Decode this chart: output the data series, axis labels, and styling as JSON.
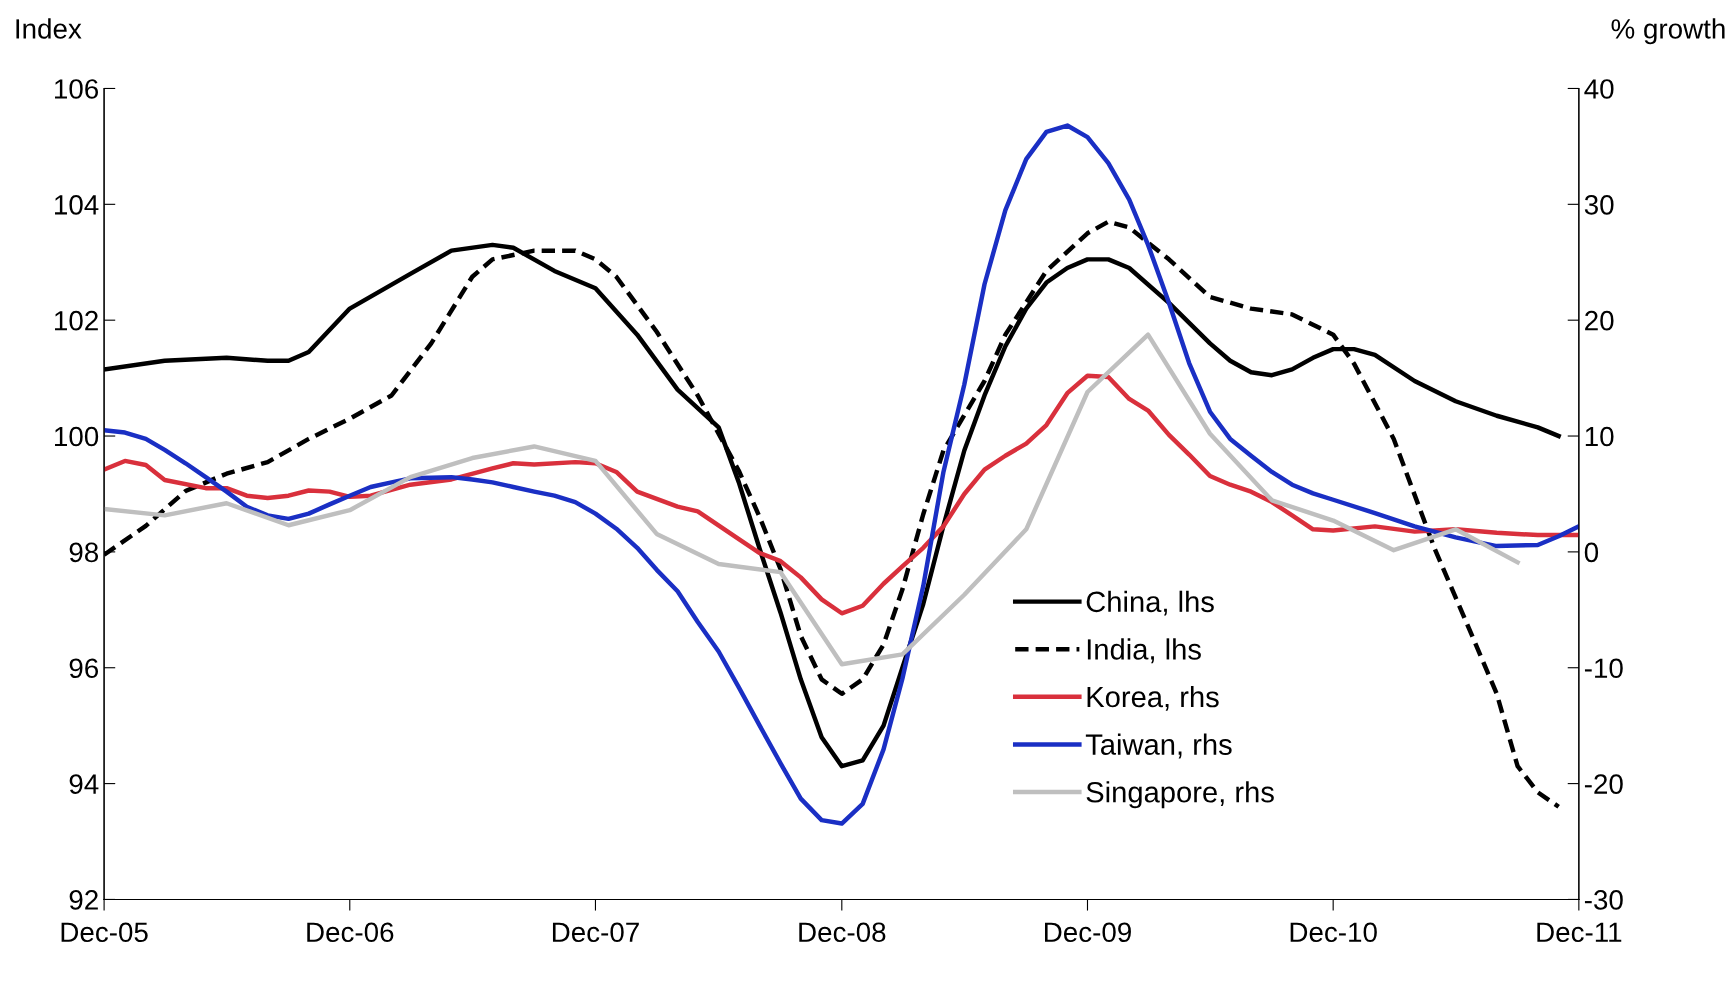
{
  "chart_data": {
    "type": "line",
    "ylabel": "Index",
    "y2label": "% growth",
    "xlim": [
      "2005-12",
      "2011-12"
    ],
    "xticks": [
      {
        "value": "2005-12",
        "label": "Dec-05"
      },
      {
        "value": "2006-12",
        "label": "Dec-06"
      },
      {
        "value": "2007-12",
        "label": "Dec-07"
      },
      {
        "value": "2008-12",
        "label": "Dec-08"
      },
      {
        "value": "2009-12",
        "label": "Dec-09"
      },
      {
        "value": "2010-12",
        "label": "Dec-10"
      },
      {
        "value": "2011-12",
        "label": "Dec-11"
      }
    ],
    "ylim": [
      92,
      106
    ],
    "yticks": [
      92,
      94,
      96,
      98,
      100,
      102,
      104,
      106
    ],
    "y2lim": [
      -30,
      40
    ],
    "y2ticks": [
      -30,
      -20,
      -10,
      0,
      10,
      20,
      30,
      40
    ],
    "grid": false,
    "legend": "bottom right",
    "series": [
      {
        "name": "China, lhs",
        "color": "#000000",
        "line_style": "solid",
        "x": [
          "2005-12",
          "2006-03",
          "2006-06",
          "2006-08",
          "2006-09",
          "2006-10",
          "2006-12",
          "2007-03",
          "2007-05",
          "2007-07",
          "2007-08",
          "2007-10",
          "2007-12",
          "2008-02",
          "2008-04",
          "2008-06",
          "2008-07",
          "2008-08",
          "2008-09",
          "2008-10",
          "2008-11",
          "2008-12",
          "2009-01",
          "2009-02",
          "2009-03",
          "2009-04",
          "2009-05",
          "2009-06",
          "2009-07",
          "2009-08",
          "2009-09",
          "2009-10",
          "2009-11",
          "2009-12",
          "2010-01",
          "2010-02",
          "2010-04",
          "2010-06",
          "2010-07",
          "2010-08",
          "2010-09",
          "2010-10",
          "2010-11",
          "2010-12",
          "2011-01",
          "2011-02",
          "2011-04",
          "2011-06",
          "2011-08",
          "2011-10",
          "2011-11"
        ],
        "values": [
          101.15,
          101.3,
          101.35,
          101.3,
          101.3,
          101.45,
          102.2,
          102.8,
          103.2,
          103.3,
          103.25,
          102.85,
          102.55,
          101.75,
          100.8,
          100.15,
          99.2,
          98.05,
          96.95,
          95.8,
          94.8,
          94.3,
          94.4,
          95.0,
          96.0,
          97.1,
          98.45,
          99.75,
          100.7,
          101.55,
          102.2,
          102.65,
          102.9,
          103.05,
          103.05,
          102.9,
          102.3,
          101.6,
          101.3,
          101.1,
          101.05,
          101.15,
          101.35,
          101.5,
          101.5,
          101.4,
          100.95,
          100.6,
          100.35,
          100.15,
          100.0
        ]
      },
      {
        "name": "India, lhs",
        "color": "#000000",
        "line_style": "dashed",
        "x": [
          "2005-12",
          "2006-02",
          "2006-04",
          "2006-06",
          "2006-08",
          "2006-10",
          "2006-12",
          "2007-02",
          "2007-04",
          "2007-06",
          "2007-07",
          "2007-09",
          "2007-11",
          "2007-12",
          "2008-01",
          "2008-03",
          "2008-05",
          "2008-07",
          "2008-08",
          "2008-09",
          "2008-10",
          "2008-11",
          "2008-12",
          "2009-01",
          "2009-02",
          "2009-03",
          "2009-04",
          "2009-05",
          "2009-07",
          "2009-08",
          "2009-10",
          "2009-12",
          "2010-01",
          "2010-02",
          "2010-04",
          "2010-06",
          "2010-08",
          "2010-10",
          "2010-12",
          "2011-01",
          "2011-03",
          "2011-05",
          "2011-07",
          "2011-08",
          "2011-09",
          "2011-10",
          "2011-11"
        ],
        "values": [
          97.95,
          98.45,
          99.05,
          99.35,
          99.55,
          99.95,
          100.3,
          100.7,
          101.6,
          102.75,
          103.05,
          103.2,
          103.2,
          103.05,
          102.75,
          101.8,
          100.7,
          99.4,
          98.6,
          97.7,
          96.55,
          95.8,
          95.55,
          95.8,
          96.4,
          97.35,
          98.65,
          99.75,
          100.95,
          101.75,
          102.85,
          103.5,
          103.7,
          103.6,
          103.05,
          102.4,
          102.2,
          102.1,
          101.75,
          101.25,
          99.95,
          98.05,
          96.4,
          95.55,
          94.3,
          93.85,
          93.6
        ]
      },
      {
        "name": "Korea, rhs",
        "color": "#d9303c",
        "line_style": "solid",
        "axis": "y2",
        "x": [
          "2005-12",
          "2006-01",
          "2006-02",
          "2006-03",
          "2006-05",
          "2006-06",
          "2006-07",
          "2006-08",
          "2006-09",
          "2006-10",
          "2006-11",
          "2006-12",
          "2007-01",
          "2007-03",
          "2007-05",
          "2007-07",
          "2007-08",
          "2007-09",
          "2007-11",
          "2007-12",
          "2008-01",
          "2008-02",
          "2008-04",
          "2008-05",
          "2008-07",
          "2008-08",
          "2008-09",
          "2008-10",
          "2008-11",
          "2008-12",
          "2009-01",
          "2009-02",
          "2009-03",
          "2009-04",
          "2009-05",
          "2009-06",
          "2009-07",
          "2009-08",
          "2009-09",
          "2009-10",
          "2009-11",
          "2009-12",
          "2010-01",
          "2010-02",
          "2010-03",
          "2010-04",
          "2010-05",
          "2010-06",
          "2010-07",
          "2010-08",
          "2010-09",
          "2010-10",
          "2010-11",
          "2010-12",
          "2011-02",
          "2011-04",
          "2011-06",
          "2011-08",
          "2011-10",
          "2011-11",
          "2011-12"
        ],
        "values": [
          7.1,
          7.85,
          7.5,
          6.2,
          5.5,
          5.5,
          4.85,
          4.65,
          4.85,
          5.3,
          5.2,
          4.75,
          4.85,
          5.8,
          6.25,
          7.2,
          7.65,
          7.55,
          7.75,
          7.65,
          6.9,
          5.2,
          3.9,
          3.5,
          1.1,
          -0.1,
          -0.8,
          -2.2,
          -4.1,
          -5.3,
          -4.65,
          -2.75,
          -1.25,
          0.35,
          2.2,
          5.0,
          7.1,
          8.3,
          9.35,
          10.95,
          13.7,
          15.2,
          15.1,
          13.2,
          12.2,
          10.1,
          8.4,
          6.55,
          5.8,
          5.2,
          4.3,
          3.15,
          1.95,
          1.85,
          2.2,
          1.75,
          1.95,
          1.65,
          1.45,
          1.45,
          1.45
        ]
      },
      {
        "name": "Taiwan, rhs",
        "color": "#1a2fc4",
        "line_style": "solid",
        "axis": "y2",
        "x": [
          "2005-12",
          "2006-01",
          "2006-02",
          "2006-03",
          "2006-04",
          "2006-05",
          "2006-06",
          "2006-07",
          "2006-08",
          "2006-09",
          "2006-10",
          "2006-11",
          "2006-12",
          "2007-01",
          "2007-02",
          "2007-03",
          "2007-05",
          "2007-06",
          "2007-07",
          "2007-08",
          "2007-09",
          "2007-10",
          "2007-11",
          "2007-12",
          "2008-01",
          "2008-02",
          "2008-03",
          "2008-04",
          "2008-05",
          "2008-06",
          "2008-07",
          "2008-08",
          "2008-09",
          "2008-10",
          "2008-11",
          "2008-12",
          "2009-01",
          "2009-02",
          "2009-03",
          "2009-04",
          "2009-05",
          "2009-06",
          "2009-07",
          "2009-08",
          "2009-09",
          "2009-10",
          "2009-11",
          "2009-12",
          "2010-01",
          "2010-02",
          "2010-03",
          "2010-04",
          "2010-05",
          "2010-06",
          "2010-07",
          "2010-08",
          "2010-09",
          "2010-10",
          "2010-11",
          "2010-12",
          "2011-02",
          "2011-04",
          "2011-06",
          "2011-08",
          "2011-10",
          "2011-11",
          "2011-12"
        ],
        "values": [
          10.5,
          10.3,
          9.75,
          8.8,
          7.65,
          6.45,
          5.2,
          3.9,
          3.15,
          2.85,
          3.3,
          4.1,
          4.85,
          5.6,
          6.0,
          6.35,
          6.45,
          6.25,
          6.0,
          5.6,
          5.2,
          4.85,
          4.3,
          3.3,
          2.0,
          0.35,
          -1.55,
          -3.4,
          -6.05,
          -8.6,
          -11.7,
          -15.0,
          -18.25,
          -21.3,
          -23.15,
          -23.45,
          -21.75,
          -17.05,
          -10.95,
          -2.95,
          6.9,
          14.45,
          23.1,
          29.5,
          33.9,
          36.25,
          36.8,
          35.8,
          33.55,
          30.4,
          26.5,
          21.5,
          16.3,
          12.1,
          9.75,
          8.3,
          6.9,
          5.8,
          5.05,
          4.5,
          3.35,
          2.2,
          1.25,
          0.5,
          0.6,
          1.35,
          2.2
        ]
      },
      {
        "name": "Singapore, rhs",
        "color": "#bfbfbf",
        "line_style": "solid",
        "axis": "y2",
        "x": [
          "2005-12",
          "2006-03",
          "2006-06",
          "2006-09",
          "2006-12",
          "2007-03",
          "2007-06",
          "2007-09",
          "2007-12",
          "2008-03",
          "2008-06",
          "2008-09",
          "2008-12",
          "2009-03",
          "2009-06",
          "2009-09",
          "2009-12",
          "2010-03",
          "2010-06",
          "2010-09",
          "2010-12",
          "2011-03",
          "2011-06",
          "2011-09"
        ],
        "values": [
          3.7,
          3.15,
          4.2,
          2.3,
          3.6,
          6.45,
          8.1,
          9.1,
          7.85,
          1.55,
          -1.05,
          -1.75,
          -9.7,
          -8.85,
          -3.7,
          1.95,
          13.8,
          18.75,
          10.2,
          4.45,
          2.7,
          0.15,
          1.95,
          -0.9
        ]
      }
    ]
  }
}
